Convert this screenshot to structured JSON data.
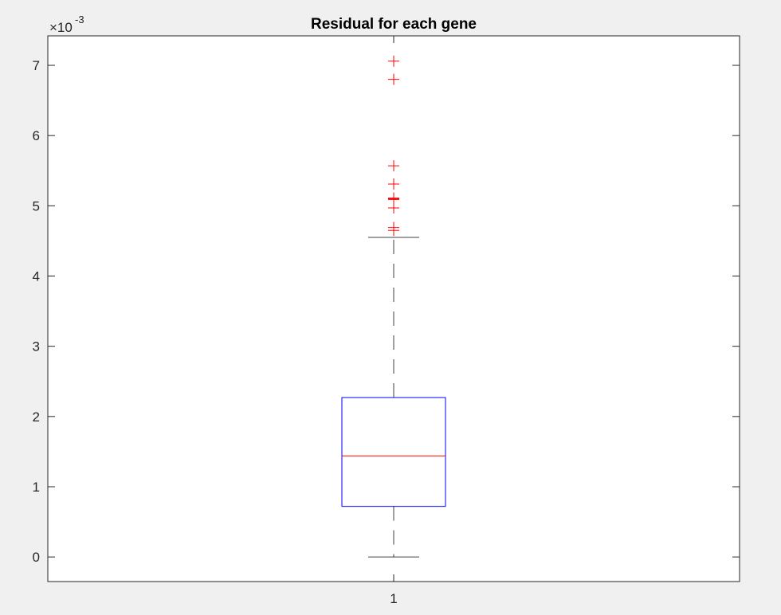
{
  "chart_data": {
    "type": "box",
    "title": "Residual for each gene",
    "xlabel": "",
    "ylabel": "",
    "y_exponent_label": "×10",
    "y_exponent": "-3",
    "categories": [
      "1"
    ],
    "x_tick_labels": [
      "1"
    ],
    "y_tick_labels": [
      "0",
      "1",
      "2",
      "3",
      "4",
      "5",
      "6",
      "7"
    ],
    "ylim": [
      -0.00035,
      0.00742
    ],
    "grid": false,
    "boxes": [
      {
        "category": "1",
        "whisker_low": 0.0,
        "q1": 0.00072,
        "median": 0.00144,
        "q3": 0.00227,
        "whisker_high": 0.00455,
        "outliers": [
          0.00706,
          0.0068,
          0.00557,
          0.00531,
          0.00511,
          0.0051,
          0.00509,
          0.00497,
          0.00469,
          0.00465
        ]
      }
    ],
    "colors": {
      "box": "#0000ff",
      "median": "#ff0000",
      "whisker": "#000000",
      "outlier": "#ff0000",
      "axes": "#262626",
      "background": "#f0f0f0"
    }
  }
}
